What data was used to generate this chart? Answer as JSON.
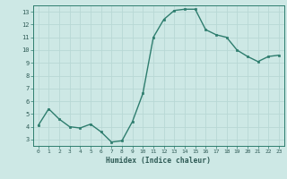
{
  "x": [
    0,
    1,
    2,
    3,
    4,
    5,
    6,
    7,
    8,
    9,
    10,
    11,
    12,
    13,
    14,
    15,
    16,
    17,
    18,
    19,
    20,
    21,
    22,
    23
  ],
  "y": [
    4.1,
    5.4,
    4.6,
    4.0,
    3.9,
    4.2,
    3.6,
    2.8,
    2.9,
    4.4,
    6.6,
    11.0,
    12.4,
    13.1,
    13.2,
    13.2,
    11.6,
    11.2,
    11.0,
    10.0,
    9.5,
    9.1,
    9.5,
    9.6
  ],
  "xlabel": "Humidex (Indice chaleur)",
  "xlim": [
    -0.5,
    23.5
  ],
  "ylim": [
    2.5,
    13.5
  ],
  "yticks": [
    3,
    4,
    5,
    6,
    7,
    8,
    9,
    10,
    11,
    12,
    13
  ],
  "xticks": [
    0,
    1,
    2,
    3,
    4,
    5,
    6,
    7,
    8,
    9,
    10,
    11,
    12,
    13,
    14,
    15,
    16,
    17,
    18,
    19,
    20,
    21,
    22,
    23
  ],
  "line_color": "#2e7d6e",
  "marker": "s",
  "marker_size": 1.8,
  "bg_color": "#cde8e5",
  "grid_color": "#b8d8d5",
  "tick_label_color": "#2e5a55",
  "xlabel_color": "#2e5a55",
  "linewidth": 1.0
}
